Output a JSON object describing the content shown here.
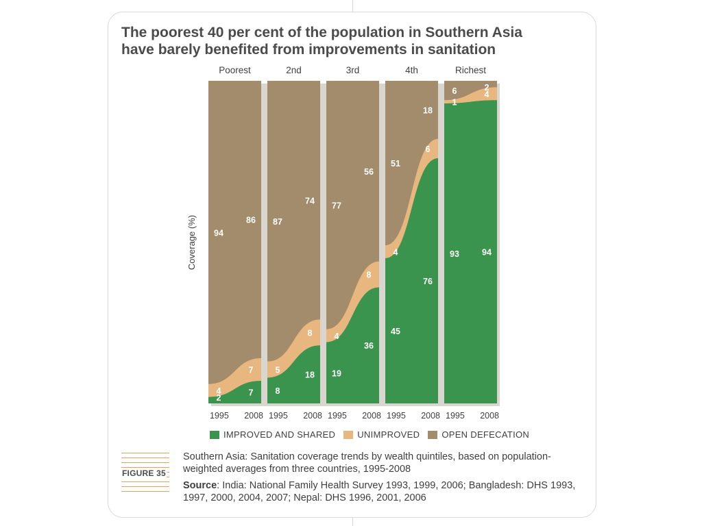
{
  "title_lines": [
    "The poorest 40 per cent of the population in Southern Asia",
    "have barely benefited from improvements in sanitation"
  ],
  "figure_label": "FIGURE 35",
  "caption": "Southern Asia: Sanitation coverage trends by wealth quintiles, based on population-weighted averages from three countries, 1995-2008",
  "source_label": "Source",
  "source_text": ": India: National Family Health Survey 1993, 1999, 2006; Bangladesh: DHS 1993, 1997, 2000, 2004, 2007; Nepal: DHS 1996, 2001, 2006",
  "legend": [
    {
      "label": "IMPROVED AND SHARED",
      "color": "#3a944d"
    },
    {
      "label": "UNIMPROVED",
      "color": "#e8b77f"
    },
    {
      "label": "OPEN DEFECATION",
      "color": "#a28c6c"
    }
  ],
  "chart_data": {
    "type": "area",
    "ylabel": "Coverage (%)",
    "ylim": [
      0,
      100
    ],
    "grid": false,
    "legend_position": "bottom",
    "panels": [
      {
        "name": "Poorest",
        "x": [
          "1995",
          "2008"
        ],
        "series": [
          {
            "name": "IMPROVED AND SHARED",
            "values": [
              2,
              7
            ]
          },
          {
            "name": "UNIMPROVED",
            "values": [
              4,
              7
            ]
          },
          {
            "name": "OPEN DEFECATION",
            "values": [
              94,
              86
            ]
          }
        ]
      },
      {
        "name": "2nd",
        "x": [
          "1995",
          "2008"
        ],
        "series": [
          {
            "name": "IMPROVED AND SHARED",
            "values": [
              8,
              18
            ]
          },
          {
            "name": "UNIMPROVED",
            "values": [
              5,
              8
            ]
          },
          {
            "name": "OPEN DEFECATION",
            "values": [
              87,
              74
            ]
          }
        ]
      },
      {
        "name": "3rd",
        "x": [
          "1995",
          "2008"
        ],
        "series": [
          {
            "name": "IMPROVED AND SHARED",
            "values": [
              19,
              36
            ]
          },
          {
            "name": "UNIMPROVED",
            "values": [
              4,
              8
            ]
          },
          {
            "name": "OPEN DEFECATION",
            "values": [
              77,
              56
            ]
          }
        ]
      },
      {
        "name": "4th",
        "x": [
          "1995",
          "2008"
        ],
        "series": [
          {
            "name": "IMPROVED AND SHARED",
            "values": [
              45,
              76
            ]
          },
          {
            "name": "UNIMPROVED",
            "values": [
              4,
              6
            ]
          },
          {
            "name": "OPEN DEFECATION",
            "values": [
              51,
              18
            ]
          }
        ]
      },
      {
        "name": "Richest",
        "x": [
          "1995",
          "2008"
        ],
        "series": [
          {
            "name": "IMPROVED AND SHARED",
            "values": [
              93,
              94
            ]
          },
          {
            "name": "UNIMPROVED",
            "values": [
              1,
              4
            ]
          },
          {
            "name": "OPEN DEFECATION",
            "values": [
              6,
              2
            ]
          }
        ]
      }
    ]
  }
}
